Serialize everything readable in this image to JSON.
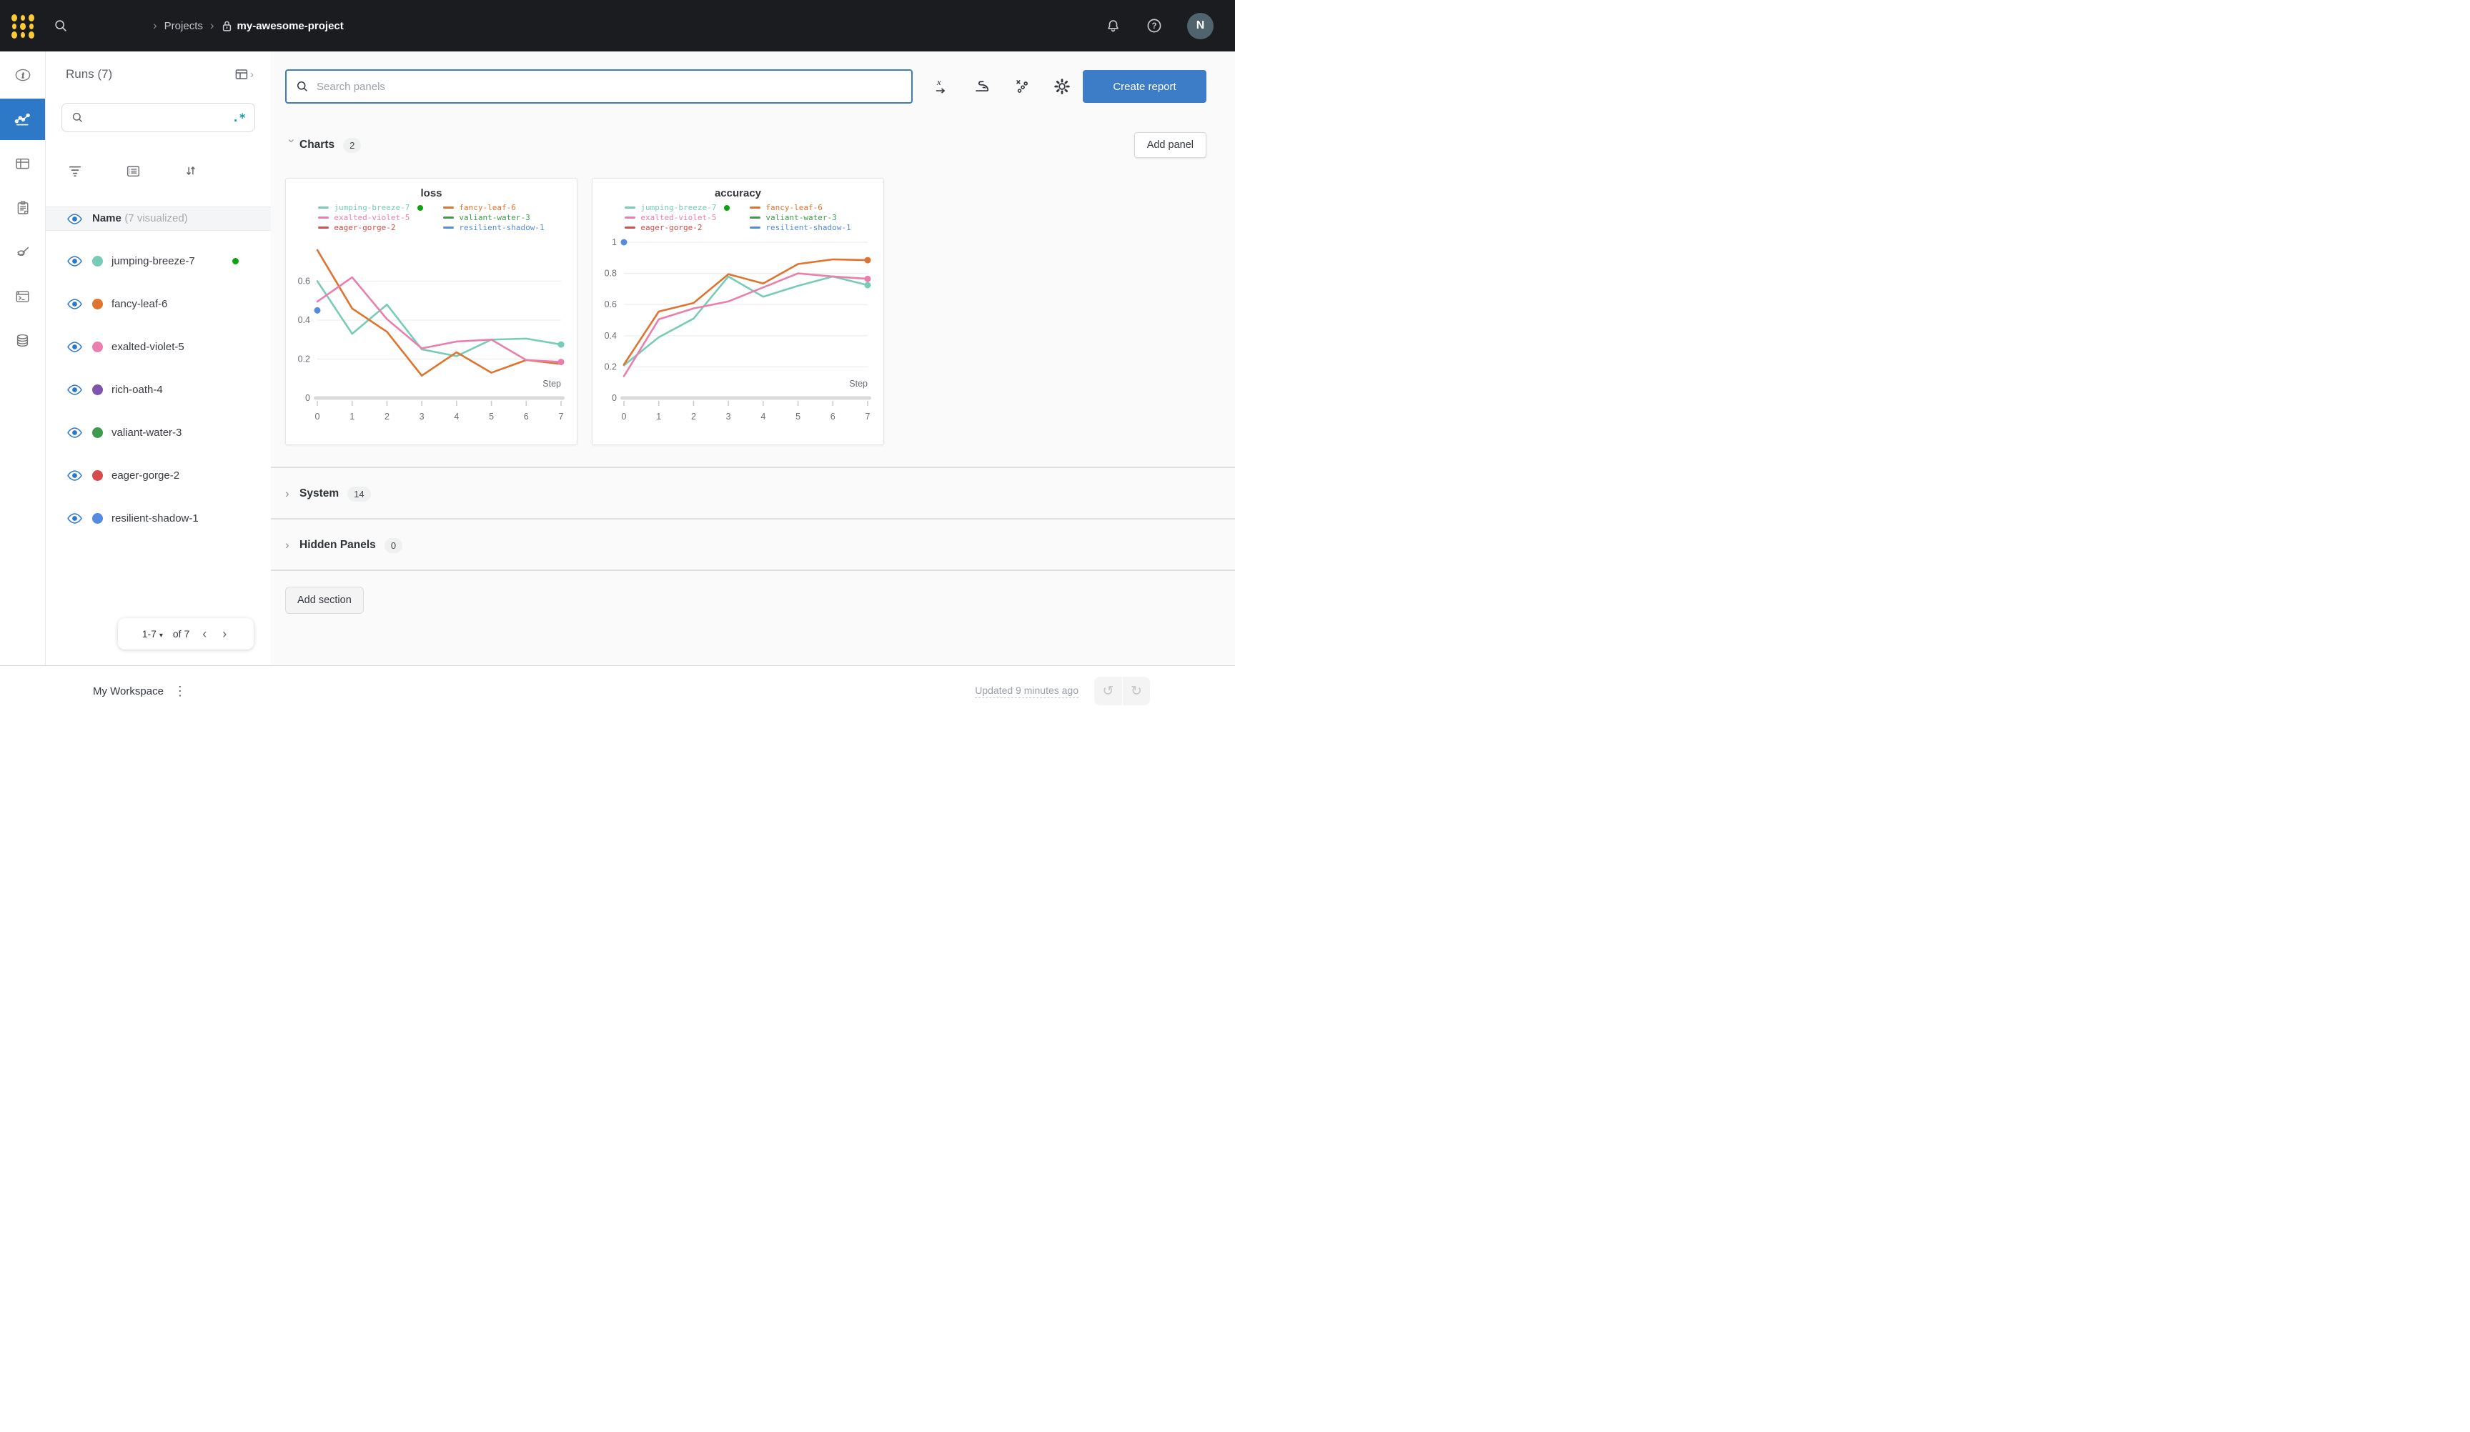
{
  "topbar": {
    "breadcrumb": {
      "sep": "›",
      "projects": "Projects",
      "project": "my-awesome-project"
    },
    "avatar": "N"
  },
  "sidebar": {
    "title": "Runs (7)",
    "search_placeholder": "",
    "regex_label": ".*",
    "sort_glyph": "↓↑",
    "header": {
      "name": "Name",
      "visualized": "(7 visualized)"
    },
    "runs": [
      {
        "name": "jumping-breeze-7",
        "color": "#76CCB6",
        "running": true
      },
      {
        "name": "fancy-leaf-6",
        "color": "#DE7430",
        "running": false
      },
      {
        "name": "exalted-violet-5",
        "color": "#EA7FAE",
        "running": false
      },
      {
        "name": "rich-oath-4",
        "color": "#7E54AC",
        "running": false
      },
      {
        "name": "valiant-water-3",
        "color": "#3F9A4F",
        "running": false
      },
      {
        "name": "eager-gorge-2",
        "color": "#D64B4B",
        "running": false
      },
      {
        "name": "resilient-shadow-1",
        "color": "#548BE0",
        "running": false
      }
    ],
    "pagination": {
      "range": "1-7",
      "caret": "▾",
      "of": "of 7",
      "prev": "‹",
      "next": "›"
    }
  },
  "main": {
    "search_placeholder": "Search panels",
    "create_report": "Create report",
    "add_panel": "Add panel",
    "add_section": "Add section",
    "sections": {
      "charts": {
        "label": "Charts",
        "count": "2"
      },
      "system": {
        "label": "System",
        "count": "14"
      },
      "hidden": {
        "label": "Hidden Panels",
        "count": "0"
      }
    },
    "collapse_glyph": "›"
  },
  "footer": {
    "workspace": "My Workspace",
    "kebab": "⋮",
    "updated": "Updated 9 minutes ago",
    "undo": "↺",
    "redo": "↻"
  },
  "chart_data": [
    {
      "type": "line",
      "title": "loss",
      "xlabel": "Step",
      "x": [
        0,
        1,
        2,
        3,
        4,
        5,
        6,
        7
      ],
      "xticks": [
        0,
        1,
        2,
        3,
        4,
        5,
        6,
        7
      ],
      "yticks": [
        0,
        0.2,
        0.4,
        0.6
      ],
      "ylim": [
        0,
        0.8
      ],
      "legend_position": "top",
      "grid": true,
      "series": [
        {
          "name": "jumping-breeze-7",
          "color": "#76CCB6",
          "values": [
            0.6,
            0.33,
            0.48,
            0.25,
            0.215,
            0.3,
            0.305,
            0.275
          ],
          "end_dot": true,
          "running": true
        },
        {
          "name": "fancy-leaf-6",
          "color": "#DE7430",
          "values": [
            0.76,
            0.46,
            0.34,
            0.115,
            0.235,
            0.13,
            0.195,
            0.175
          ],
          "end_dot": false
        },
        {
          "name": "exalted-violet-5",
          "color": "#EA7FAE",
          "values": [
            0.495,
            0.62,
            0.405,
            0.255,
            0.29,
            0.3,
            0.195,
            0.185
          ],
          "end_dot": true
        },
        {
          "name": "valiant-water-3",
          "color": "#3F9A4F",
          "values": null
        },
        {
          "name": "eager-gorge-2",
          "color": "#D64B4B",
          "values": null
        },
        {
          "name": "resilient-shadow-1",
          "color": "#548BE0",
          "values": null,
          "points": [
            [
              0,
              0.45
            ]
          ]
        }
      ]
    },
    {
      "type": "line",
      "title": "accuracy",
      "xlabel": "Step",
      "x": [
        0,
        1,
        2,
        3,
        4,
        5,
        6,
        7
      ],
      "xticks": [
        0,
        1,
        2,
        3,
        4,
        5,
        6,
        7
      ],
      "yticks": [
        0,
        0.2,
        0.4,
        0.6,
        0.8,
        1
      ],
      "ylim": [
        0,
        1.0
      ],
      "legend_position": "top",
      "grid": true,
      "series": [
        {
          "name": "jumping-breeze-7",
          "color": "#76CCB6",
          "values": [
            0.21,
            0.39,
            0.51,
            0.78,
            0.65,
            0.72,
            0.78,
            0.725
          ],
          "end_dot": true,
          "running": true
        },
        {
          "name": "fancy-leaf-6",
          "color": "#DE7430",
          "values": [
            0.215,
            0.555,
            0.61,
            0.795,
            0.735,
            0.86,
            0.89,
            0.885
          ],
          "end_dot": true
        },
        {
          "name": "exalted-violet-5",
          "color": "#EA7FAE",
          "values": [
            0.14,
            0.505,
            0.575,
            0.62,
            0.71,
            0.8,
            0.78,
            0.765
          ],
          "end_dot": true
        },
        {
          "name": "valiant-water-3",
          "color": "#3F9A4F",
          "values": null
        },
        {
          "name": "eager-gorge-2",
          "color": "#D64B4B",
          "values": null
        },
        {
          "name": "resilient-shadow-1",
          "color": "#548BE0",
          "values": null,
          "points": [
            [
              0,
              1.0
            ]
          ]
        }
      ]
    }
  ]
}
